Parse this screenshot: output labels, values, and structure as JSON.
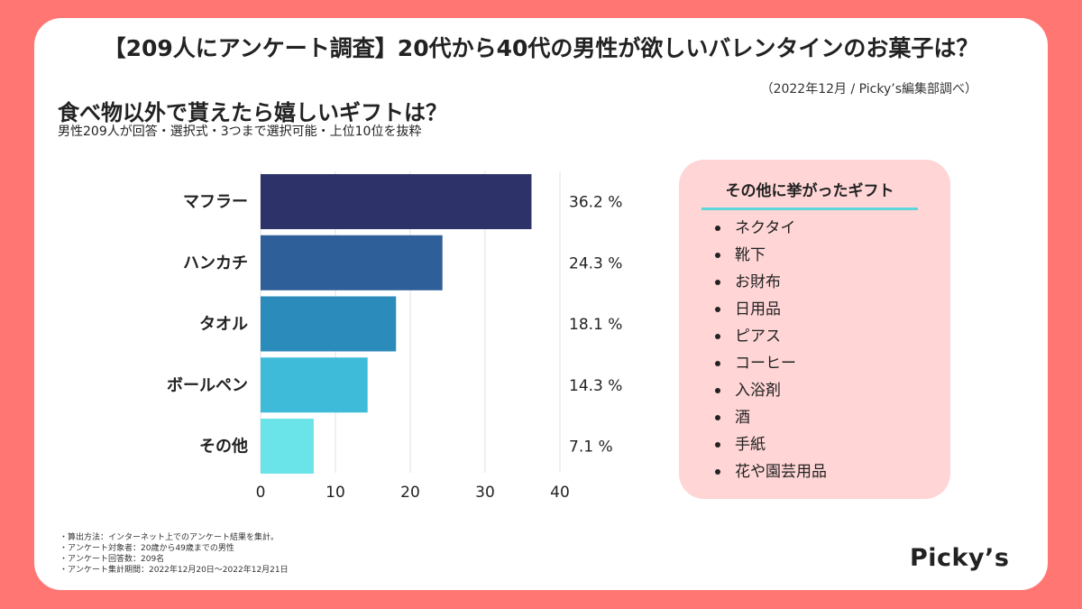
{
  "header": {
    "title": "【209人にアンケート調査】20代から40代の男性が欲しいバレンタインのお菓子は？",
    "source": "（2022年12月 / Picky’s編集部調べ）"
  },
  "colors": {
    "background": "#ff7673",
    "bars": [
      "#2d3369",
      "#2e5f98",
      "#2b8bba",
      "#3ebbd9",
      "#6ae4e8"
    ],
    "sidebox": "#ffd5d6",
    "accent_line": "#5fd6dc"
  },
  "chart_data": {
    "type": "bar",
    "orientation": "horizontal",
    "title": "食べ物以外で貰えたら嬉しいギフトは？",
    "subtitle": "男性209人が回答・選択式・3つまで選択可能・上位10位を抜粋",
    "categories": [
      "マフラー",
      "ハンカチ",
      "タオル",
      "ボールペン",
      "その他"
    ],
    "values": [
      36.2,
      24.3,
      18.1,
      14.3,
      7.1
    ],
    "value_labels": [
      "36.2 %",
      "24.3 %",
      "18.1 %",
      "14.3 %",
      "7.1 %"
    ],
    "xlim": [
      0,
      40
    ],
    "xticks": [
      0,
      10,
      20,
      30,
      40
    ],
    "xlabel": "",
    "ylabel": "",
    "grid": true
  },
  "other": {
    "title": "その他に挙がったギフト",
    "items": [
      "ネクタイ",
      "靴下",
      "お財布",
      "日用品",
      "ピアス",
      "コーヒー",
      "入浴剤",
      "酒",
      "手紙",
      "花や園芸用品"
    ]
  },
  "notes": [
    "・算出方法：インターネット上でのアンケート結果を集計。",
    "・アンケート対象者：20歳から49歳までの男性",
    "・アンケート回答数：209名",
    "・アンケート集計期間：2022年12月20日〜2022年12月21日"
  ],
  "logo": "Picky’s"
}
